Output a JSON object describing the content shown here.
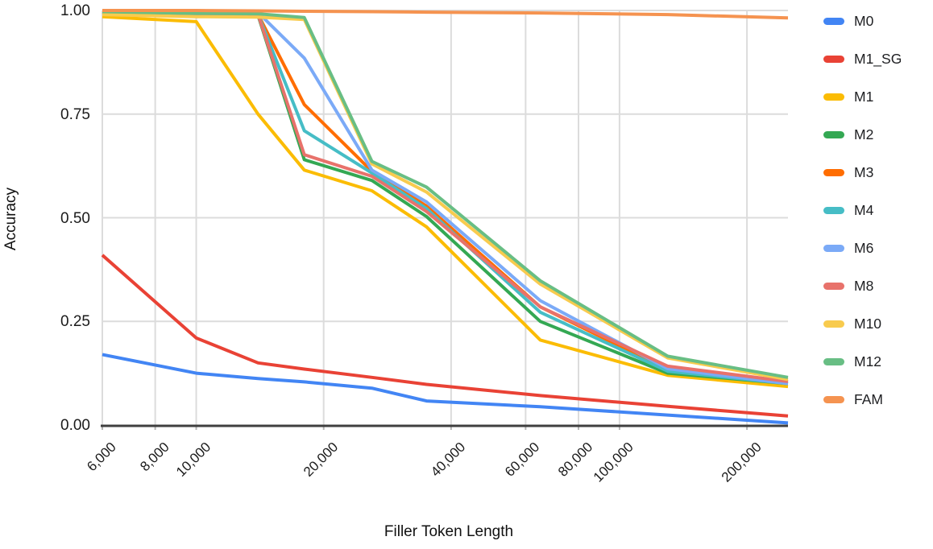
{
  "chart_data": {
    "type": "line",
    "title": "",
    "xlabel": "Filler Token Length",
    "ylabel": "Accuracy",
    "x_scale": "log",
    "grid": true,
    "legend_position": "right",
    "xlim": [
      6000,
      250000
    ],
    "ylim": [
      0,
      1
    ],
    "x_tick_values": [
      6000,
      8000,
      10000,
      20000,
      40000,
      60000,
      80000,
      100000,
      200000
    ],
    "x_tick_labels": [
      "6,000",
      "8,000",
      "10,000",
      "20,000",
      "40,000",
      "60,000",
      "80,000",
      "100,000",
      "200,000"
    ],
    "y_tick_values": [
      0,
      0.25,
      0.5,
      0.75,
      1.0
    ],
    "y_tick_labels": [
      "0.00",
      "0.25",
      "0.50",
      "0.75",
      "1.00"
    ],
    "x": [
      6000,
      10000,
      14000,
      18000,
      26000,
      35000,
      65000,
      130000,
      250000
    ],
    "series": [
      {
        "name": "M0",
        "color": "#4285F4",
        "values": [
          0.17,
          0.125,
          0.112,
          0.104,
          0.089,
          0.058,
          0.044,
          0.024,
          0.005
        ]
      },
      {
        "name": "M1_SG",
        "color": "#E94235",
        "values": [
          0.41,
          0.21,
          0.15,
          0.135,
          0.115,
          0.098,
          0.071,
          0.045,
          0.022
        ]
      },
      {
        "name": "M1",
        "color": "#FBBC04",
        "values": [
          0.985,
          0.973,
          0.75,
          0.615,
          0.565,
          0.478,
          0.205,
          0.12,
          0.093
        ]
      },
      {
        "name": "M2",
        "color": "#34A853",
        "values": [
          0.995,
          0.99,
          0.988,
          0.64,
          0.59,
          0.503,
          0.25,
          0.125,
          0.1
        ]
      },
      {
        "name": "M3",
        "color": "#FF6D01",
        "values": [
          0.996,
          0.991,
          0.99,
          0.773,
          0.612,
          0.528,
          0.285,
          0.133,
          0.104
        ]
      },
      {
        "name": "M4",
        "color": "#46BDC6",
        "values": [
          0.996,
          0.991,
          0.99,
          0.71,
          0.608,
          0.522,
          0.272,
          0.13,
          0.1
        ]
      },
      {
        "name": "M6",
        "color": "#7BAAF7",
        "values": [
          0.997,
          0.992,
          0.995,
          0.885,
          0.615,
          0.538,
          0.3,
          0.136,
          0.1
        ]
      },
      {
        "name": "M8",
        "color": "#E8726B",
        "values": [
          0.996,
          0.991,
          0.99,
          0.652,
          0.6,
          0.515,
          0.285,
          0.142,
          0.105
        ]
      },
      {
        "name": "M10",
        "color": "#F8CB4E",
        "values": [
          0.99,
          0.985,
          0.984,
          0.978,
          0.63,
          0.562,
          0.34,
          0.162,
          0.11
        ]
      },
      {
        "name": "M12",
        "color": "#68BE84",
        "values": [
          0.997,
          0.993,
          0.992,
          0.983,
          0.636,
          0.574,
          0.348,
          0.166,
          0.115
        ]
      },
      {
        "name": "FAM",
        "color": "#F59350",
        "values": [
          1.0,
          1.0,
          0.999,
          0.998,
          0.997,
          0.996,
          0.994,
          0.99,
          0.982
        ]
      }
    ],
    "style": {
      "grid_color": "#dcdcdc",
      "axis_color": "#3f3f3f",
      "tick_color": "#b5b5b5",
      "text_color": "#1b1b1b",
      "background": "#ffffff",
      "line_width": 4
    }
  }
}
